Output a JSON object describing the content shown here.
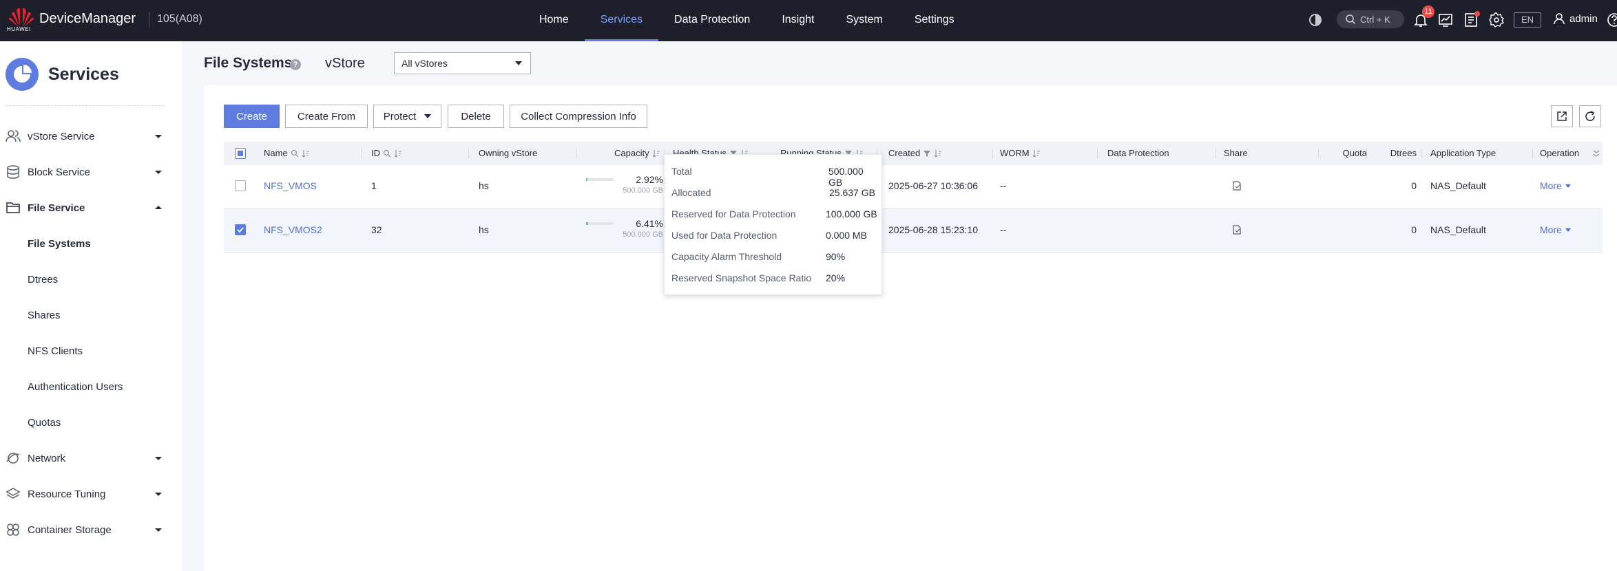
{
  "app": {
    "brand": "HUAWEI",
    "title": "DeviceManager",
    "version": "105(A08)"
  },
  "nav": {
    "items": [
      {
        "label": "Home",
        "active": false
      },
      {
        "label": "Services",
        "active": true
      },
      {
        "label": "Data Protection",
        "active": false
      },
      {
        "label": "Insight",
        "active": false
      },
      {
        "label": "System",
        "active": false
      },
      {
        "label": "Settings",
        "active": false
      }
    ]
  },
  "topbar": {
    "search_shortcut": "Ctrl + K",
    "alarm_count": "11",
    "language": "EN",
    "user": "admin"
  },
  "sidebar": {
    "title": "Services",
    "items": [
      {
        "label": "vStore Service",
        "icon": "user-group-icon",
        "expanded": false
      },
      {
        "label": "Block Service",
        "icon": "database-icon",
        "expanded": false
      },
      {
        "label": "File Service",
        "icon": "folder-icon",
        "expanded": true
      },
      {
        "label": "Network",
        "icon": "network-icon",
        "expanded": false
      },
      {
        "label": "Resource Tuning",
        "icon": "layers-icon",
        "expanded": false
      },
      {
        "label": "Container Storage",
        "icon": "container-icon",
        "expanded": false
      }
    ],
    "file_service_children": [
      {
        "label": "File Systems",
        "active": true
      },
      {
        "label": "Dtrees",
        "active": false
      },
      {
        "label": "Shares",
        "active": false
      },
      {
        "label": "NFS Clients",
        "active": false
      },
      {
        "label": "Authentication Users",
        "active": false
      },
      {
        "label": "Quotas",
        "active": false
      }
    ]
  },
  "page": {
    "title": "File Systems",
    "vstore_label": "vStore",
    "vstore_selected": "All vStores"
  },
  "toolbar": {
    "create": "Create",
    "create_from": "Create From",
    "protect": "Protect",
    "delete": "Delete",
    "collect": "Collect Compression Info"
  },
  "table": {
    "columns": {
      "name": "Name",
      "id": "ID",
      "owning_vstore": "Owning vStore",
      "capacity": "Capacity",
      "health_status": "Health Status",
      "running_status": "Running Status",
      "created": "Created",
      "worm": "WORM",
      "data_protection": "Data Protection",
      "share": "Share",
      "quota": "Quota",
      "dtrees": "Dtrees",
      "application_type": "Application Type",
      "operation": "Operation"
    },
    "rows": [
      {
        "selected": false,
        "name": "NFS_VMOS",
        "id": "1",
        "vstore": "hs",
        "capacity_pct": "2.92%",
        "capacity_fraction": 0.0292,
        "capacity_total": "500.000 GB",
        "created": "2025-06-27 10:36:06",
        "worm": "--",
        "dtrees": "0",
        "app_type": "NAS_Default",
        "operation": "More"
      },
      {
        "selected": true,
        "name": "NFS_VMOS2",
        "id": "32",
        "vstore": "hs",
        "capacity_pct": "6.41%",
        "capacity_fraction": 0.0641,
        "capacity_total": "500.000 GB",
        "created": "2025-06-28 15:23:10",
        "worm": "--",
        "dtrees": "0",
        "app_type": "NAS_Default",
        "operation": "More"
      }
    ]
  },
  "tooltip": {
    "rows": [
      {
        "label": "Total",
        "value": "500.000 GB"
      },
      {
        "label": "Allocated",
        "value": "25.637 GB"
      },
      {
        "label": "Reserved for Data Protection",
        "value": "100.000 GB"
      },
      {
        "label": "Used for Data Protection",
        "value": "0.000 MB"
      },
      {
        "label": "Capacity Alarm Threshold",
        "value": "90%"
      },
      {
        "label": "Reserved Snapshot Space Ratio",
        "value": "20%"
      }
    ]
  },
  "colors": {
    "accent": "#5e7ce0",
    "topbar": "#1e1f2b",
    "alarm": "#ef4a4a",
    "capacity_used": "#50d4ab"
  }
}
